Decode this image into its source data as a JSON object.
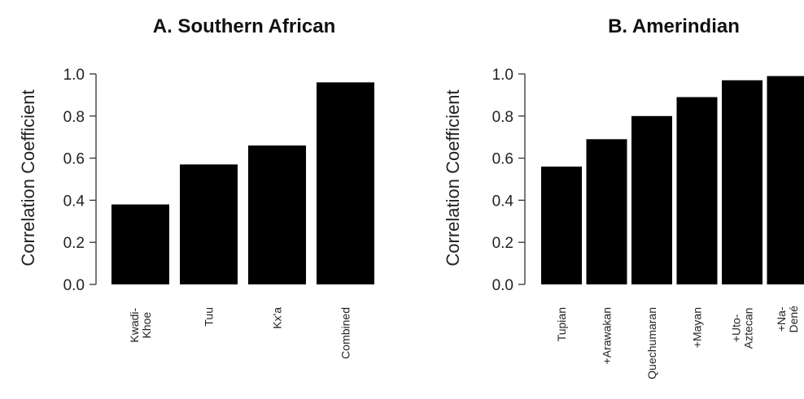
{
  "chart_data": [
    {
      "type": "bar",
      "title": "A. Southern African",
      "ylabel": "Correlation Coefficient",
      "xlabel": "",
      "ylim": [
        0,
        1.0
      ],
      "yticks": [
        "0.0",
        "0.2",
        "0.4",
        "0.6",
        "0.8",
        "1.0"
      ],
      "categories": [
        [
          "Kwadi-",
          "Khoe"
        ],
        [
          "Tuu"
        ],
        [
          "Kx'a"
        ],
        [
          "Combined"
        ]
      ],
      "values": [
        0.38,
        0.57,
        0.66,
        0.96
      ],
      "bar_color": "#000000"
    },
    {
      "type": "bar",
      "title": "B. Amerindian",
      "ylabel": "Correlation Coefficient",
      "xlabel": "",
      "ylim": [
        0,
        1.0
      ],
      "yticks": [
        "0.0",
        "0.2",
        "0.4",
        "0.6",
        "0.8",
        "1.0"
      ],
      "categories": [
        [
          "Tupian"
        ],
        [
          "+Arawakan"
        ],
        [
          "Quechumaran"
        ],
        [
          "+Mayan"
        ],
        [
          "+Uto-",
          "Aztecan"
        ],
        [
          "+Na-",
          "Dené"
        ]
      ],
      "values": [
        0.56,
        0.69,
        0.8,
        0.89,
        0.97,
        0.99
      ],
      "bar_color": "#000000"
    }
  ]
}
